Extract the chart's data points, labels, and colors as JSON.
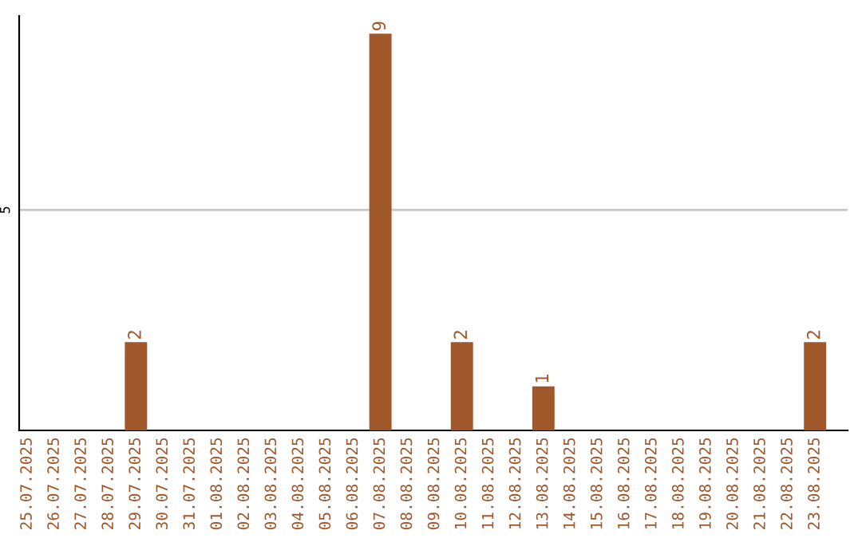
{
  "chart_data": {
    "type": "bar",
    "categories": [
      "25.07.2025",
      "26.07.2025",
      "27.07.2025",
      "28.07.2025",
      "29.07.2025",
      "30.07.2025",
      "31.07.2025",
      "01.08.2025",
      "02.08.2025",
      "03.08.2025",
      "04.08.2025",
      "05.08.2025",
      "06.08.2025",
      "07.08.2025",
      "08.08.2025",
      "09.08.2025",
      "10.08.2025",
      "11.08.2025",
      "12.08.2025",
      "13.08.2025",
      "14.08.2025",
      "15.08.2025",
      "16.08.2025",
      "17.08.2025",
      "18.08.2025",
      "19.08.2025",
      "20.08.2025",
      "21.08.2025",
      "22.08.2025",
      "23.08.2025"
    ],
    "values": [
      0,
      0,
      0,
      0,
      2,
      0,
      0,
      0,
      0,
      0,
      0,
      0,
      0,
      9,
      0,
      0,
      2,
      0,
      0,
      1,
      0,
      0,
      0,
      0,
      0,
      0,
      0,
      0,
      0,
      2
    ],
    "value_labels": [
      null,
      null,
      null,
      null,
      "2",
      null,
      null,
      null,
      null,
      null,
      null,
      null,
      null,
      "9",
      null,
      null,
      "2",
      null,
      null,
      "1",
      null,
      null,
      null,
      null,
      null,
      null,
      null,
      null,
      null,
      "2"
    ],
    "color": "#a0572a",
    "ylim": [
      0,
      9.4
    ],
    "yticks": [
      5
    ],
    "grid": "y",
    "legend": false
  }
}
